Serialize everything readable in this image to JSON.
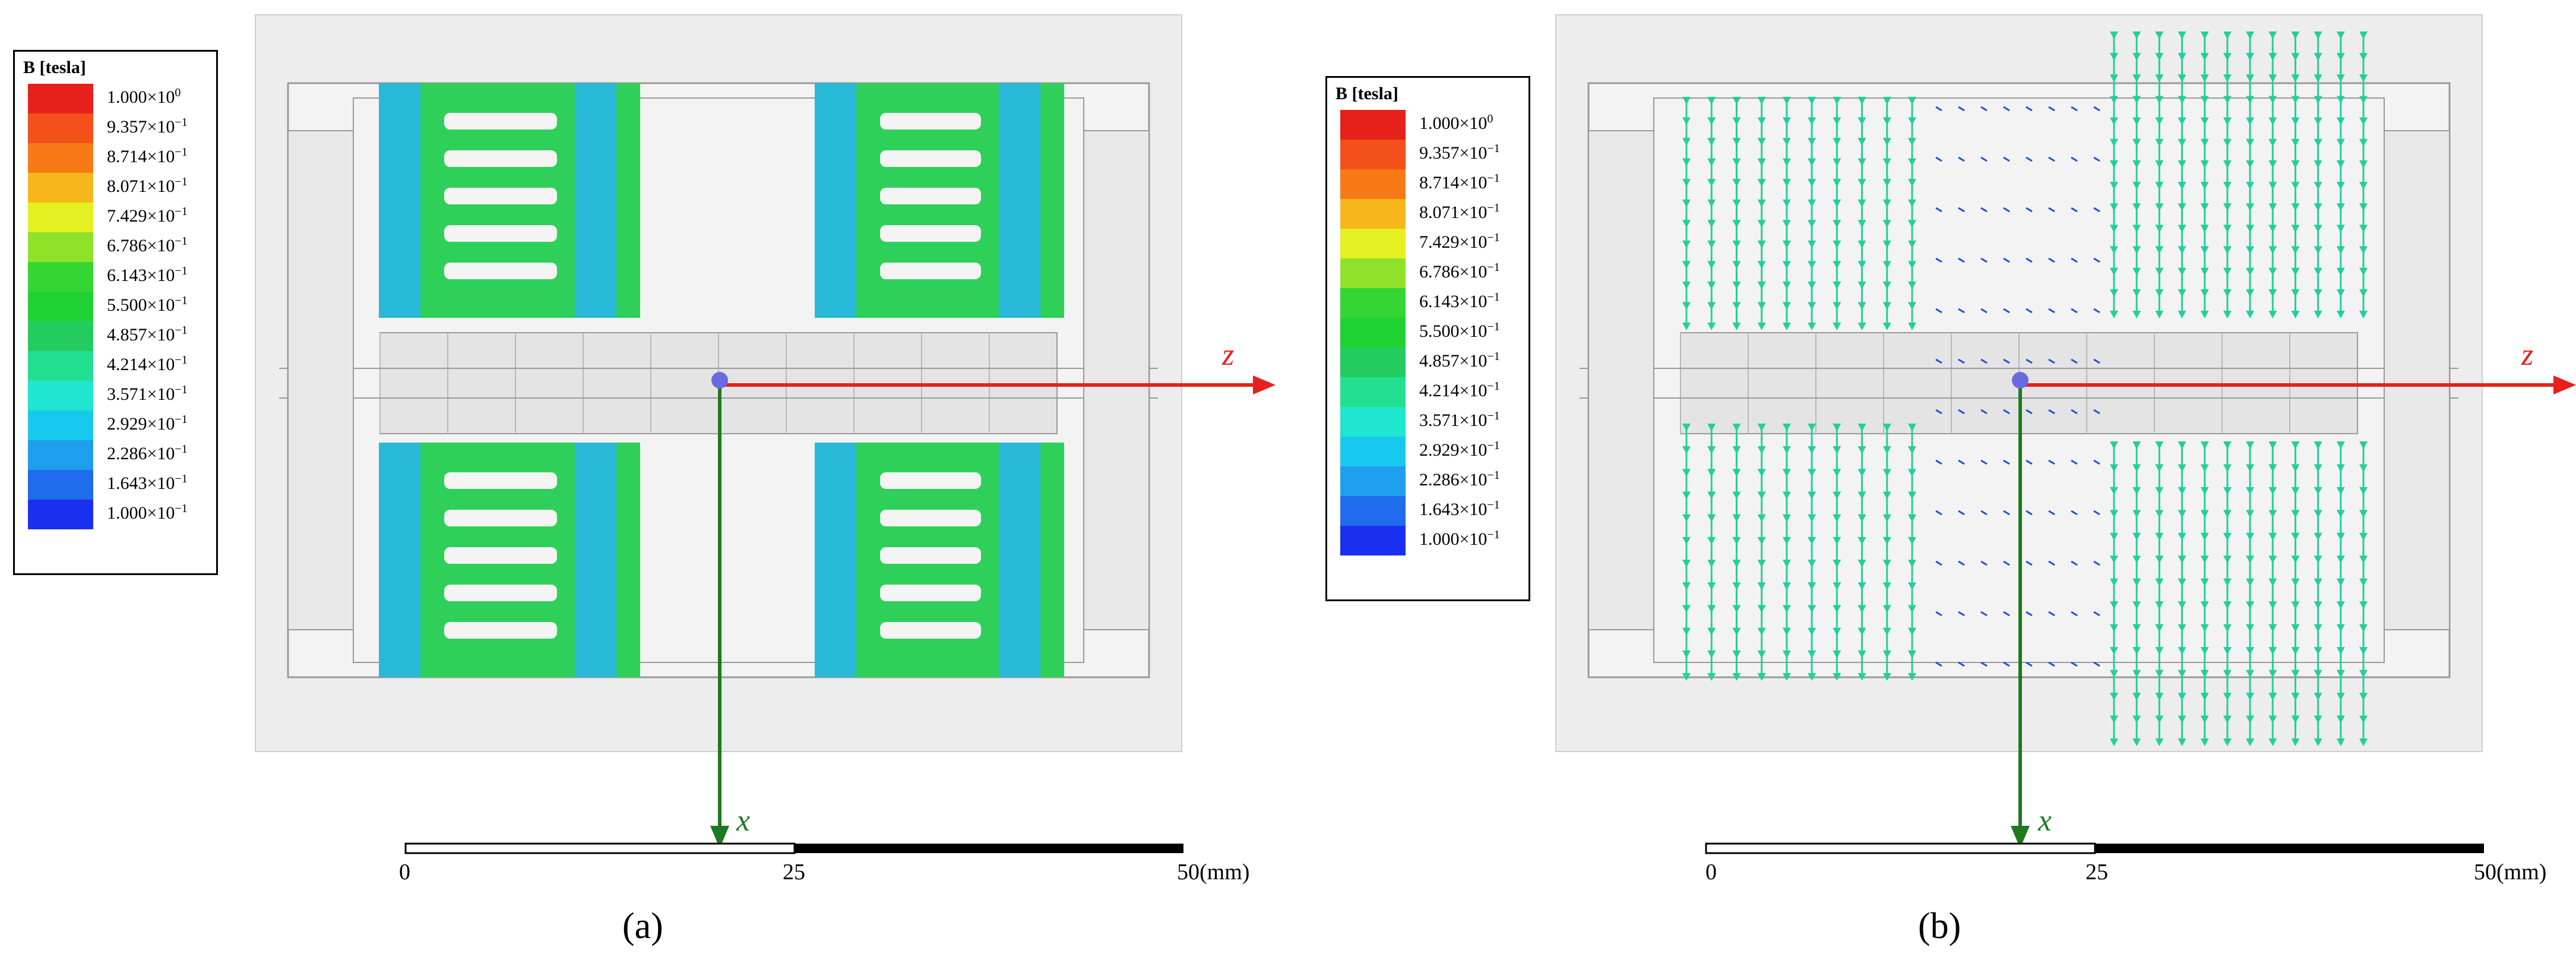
{
  "panels": [
    {
      "label": "(a)",
      "view": "magnitude"
    },
    {
      "label": "(b)",
      "view": "vector"
    }
  ],
  "legend": {
    "title": "B [tesla]",
    "entries": [
      {
        "mantissa": "1.000",
        "exponent": "0",
        "color": "#e8201b"
      },
      {
        "mantissa": "9.357",
        "exponent": "−1",
        "color": "#f4501a"
      },
      {
        "mantissa": "8.714",
        "exponent": "−1",
        "color": "#f77a16"
      },
      {
        "mantissa": "8.071",
        "exponent": "−1",
        "color": "#f7b71a"
      },
      {
        "mantissa": "7.429",
        "exponent": "−1",
        "color": "#e4f020"
      },
      {
        "mantissa": "6.786",
        "exponent": "−1",
        "color": "#8fe22a"
      },
      {
        "mantissa": "6.143",
        "exponent": "−1",
        "color": "#33d632"
      },
      {
        "mantissa": "5.500",
        "exponent": "−1",
        "color": "#1fd233"
      },
      {
        "mantissa": "4.857",
        "exponent": "−1",
        "color": "#24cc60"
      },
      {
        "mantissa": "4.214",
        "exponent": "−1",
        "color": "#22e08f"
      },
      {
        "mantissa": "3.571",
        "exponent": "−1",
        "color": "#1fe6cf"
      },
      {
        "mantissa": "2.929",
        "exponent": "−1",
        "color": "#18c9ee"
      },
      {
        "mantissa": "2.286",
        "exponent": "−1",
        "color": "#1e9fee"
      },
      {
        "mantissa": "1.643",
        "exponent": "−1",
        "color": "#1f6cec"
      },
      {
        "mantissa": "1.000",
        "exponent": "−1",
        "color": "#1b2ff0"
      }
    ],
    "times_symbol": "×",
    "base": "10"
  },
  "axes": {
    "z_label": "z",
    "x_label": "x",
    "z_color": "#e8201b",
    "x_color": "#1f7a1f",
    "origin_color": "#6a6ae0"
  },
  "scale_bar": {
    "ticks": [
      "0",
      "25",
      "50(mm)"
    ]
  },
  "colors": {
    "housing": "#ededed",
    "housing_line": "#9a9a9a",
    "field_main": "#2fd05a",
    "field_edge": "#28b8d8",
    "field_dark": "#1f4fd8",
    "arrow": "#23cf9a"
  }
}
